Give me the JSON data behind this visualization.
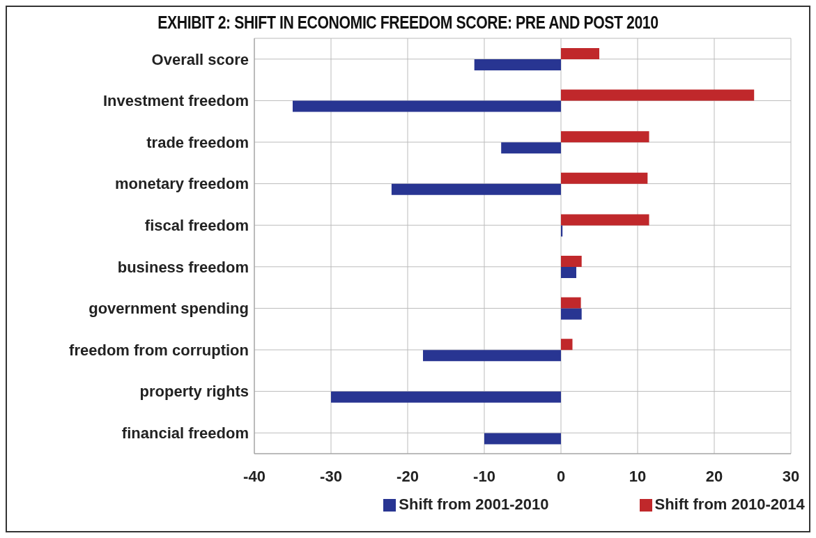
{
  "chart_data": {
    "type": "bar",
    "orientation": "horizontal",
    "title": "EXHIBIT 2: SHIFT IN ECONOMIC FREEDOM SCORE: PRE AND POST 2010",
    "categories": [
      "Overall score",
      "Investment freedom",
      "trade freedom",
      "monetary freedom",
      "fiscal freedom",
      "business freedom",
      "government spending",
      "freedom from corruption",
      "property rights",
      "financial freedom"
    ],
    "series": [
      {
        "name": "Shift from 2010-2014",
        "color": "#c0282b",
        "values": [
          5,
          25.2,
          11.5,
          11.3,
          11.5,
          2.7,
          2.6,
          1.5,
          null,
          null
        ]
      },
      {
        "name": "Shift from 2001-2010",
        "color": "#283592",
        "values": [
          -11.3,
          -35,
          -7.8,
          -22.1,
          0.2,
          2,
          2.7,
          -18,
          -30,
          -10
        ]
      }
    ],
    "xlim": [
      -40,
      30
    ],
    "xticks": [
      -40,
      -30,
      -20,
      -10,
      0,
      10,
      20,
      30
    ],
    "grid": true,
    "legend": "bottom"
  }
}
